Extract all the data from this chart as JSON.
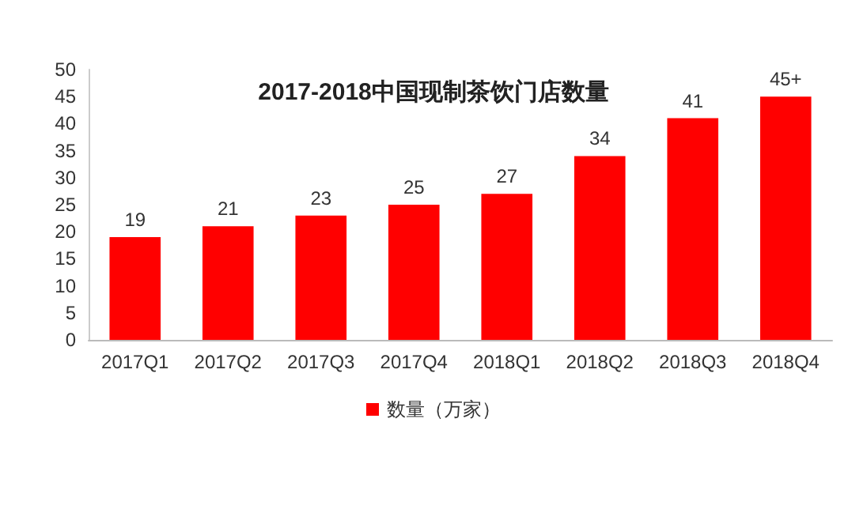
{
  "chart_data": {
    "type": "bar",
    "title": "2017-2018中国现制茶饮门店数量",
    "categories": [
      "2017Q1",
      "2017Q2",
      "2017Q3",
      "2017Q4",
      "2018Q1",
      "2018Q2",
      "2018Q3",
      "2018Q4"
    ],
    "series": [
      {
        "name": "数量（万家）",
        "color": "#ff0000",
        "values": [
          19,
          21,
          23,
          25,
          27,
          34,
          41,
          45
        ],
        "value_labels": [
          "19",
          "21",
          "23",
          "25",
          "27",
          "34",
          "41",
          "45+"
        ]
      }
    ],
    "ylim": [
      0,
      50
    ],
    "yticks": [
      0,
      5,
      10,
      15,
      20,
      25,
      30,
      35,
      40,
      45,
      50
    ],
    "grid": false,
    "legend": "bottom"
  }
}
